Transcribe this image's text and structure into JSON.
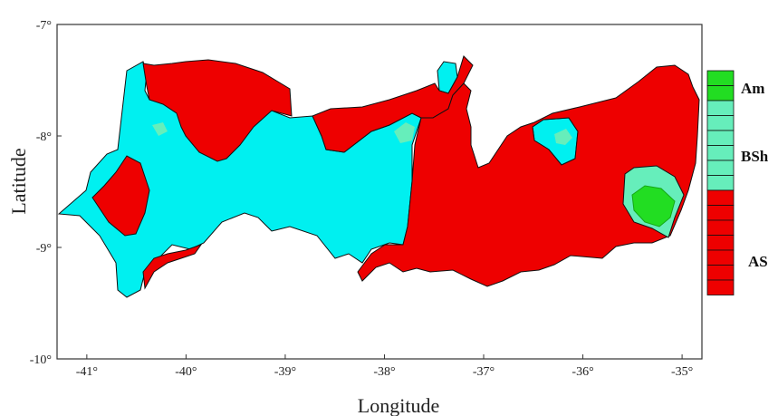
{
  "chart_data": {
    "type": "choropleth-map",
    "xlabel": "Longitude",
    "ylabel": "Latitude",
    "x_ticks": [
      "-41°",
      "-40°",
      "-39°",
      "-38°",
      "-37°",
      "-36°",
      "-35°"
    ],
    "y_ticks": [
      "-7°",
      "-8°",
      "-9°",
      "-10°"
    ],
    "xlim": [
      -41.3,
      -34.8
    ],
    "ylim": [
      -10,
      -7
    ],
    "legend": [
      {
        "label": "Am",
        "color": "#22dd22"
      },
      {
        "label": "BSh",
        "color": "#66eebb"
      },
      {
        "label": "AS",
        "color": "#ee0000"
      }
    ],
    "colors": {
      "cyan": "#00f0f0",
      "red": "#ee0000",
      "aquamarine": "#66eebb",
      "green": "#22dd22"
    }
  }
}
